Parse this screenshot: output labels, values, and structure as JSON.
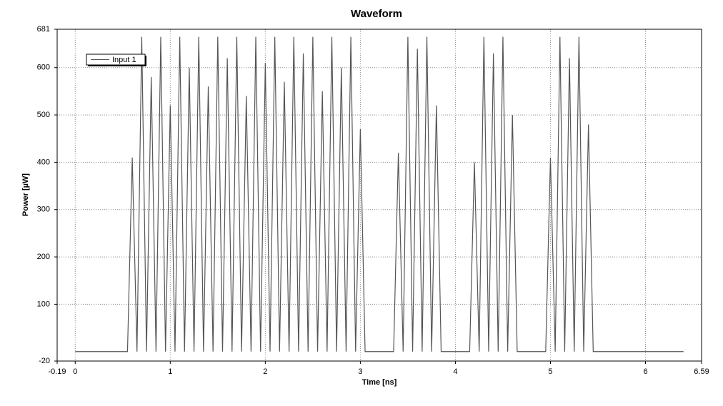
{
  "chart_data": {
    "type": "line",
    "title": "Waveform",
    "x_label": "Time [ns]",
    "y_label": "Power [µW]",
    "x": [
      0,
      0.55,
      0.6,
      0.65,
      0.7,
      0.75,
      0.8,
      0.85,
      0.9,
      0.95,
      1.0,
      1.05,
      1.1,
      1.15,
      1.2,
      1.25,
      1.3,
      1.35,
      1.4,
      1.45,
      1.5,
      1.55,
      1.6,
      1.65,
      1.7,
      1.75,
      1.8,
      1.85,
      1.9,
      1.95,
      2.0,
      2.05,
      2.1,
      2.15,
      2.2,
      2.25,
      2.3,
      2.35,
      2.4,
      2.45,
      2.5,
      2.55,
      2.6,
      2.65,
      2.7,
      2.75,
      2.8,
      2.85,
      2.9,
      2.95,
      3.0,
      3.05,
      3.35,
      3.4,
      3.45,
      3.5,
      3.55,
      3.6,
      3.65,
      3.7,
      3.75,
      3.8,
      3.85,
      4.15,
      4.2,
      4.25,
      4.3,
      4.35,
      4.4,
      4.45,
      4.5,
      4.55,
      4.6,
      4.65,
      4.95,
      5.0,
      5.05,
      5.1,
      5.15,
      5.2,
      5.25,
      5.3,
      5.35,
      5.4,
      5.45,
      6.4
    ],
    "series": [
      {
        "name": "Input 1",
        "color": "#555555",
        "values": [
          0,
          0,
          410,
          0,
          665,
          0,
          580,
          0,
          665,
          0,
          520,
          0,
          665,
          0,
          600,
          0,
          665,
          0,
          560,
          0,
          665,
          0,
          620,
          0,
          665,
          0,
          540,
          0,
          665,
          0,
          610,
          0,
          665,
          0,
          570,
          0,
          665,
          0,
          630,
          0,
          665,
          0,
          550,
          0,
          665,
          0,
          600,
          0,
          665,
          0,
          470,
          0,
          0,
          420,
          0,
          665,
          0,
          640,
          0,
          665,
          0,
          520,
          0,
          0,
          400,
          0,
          665,
          0,
          630,
          0,
          665,
          0,
          500,
          0,
          0,
          410,
          0,
          665,
          0,
          620,
          0,
          665,
          0,
          480,
          0,
          0
        ]
      }
    ],
    "xlim": [
      -0.19,
      6.59
    ],
    "xticks": [
      -0.19,
      0,
      1,
      2,
      3,
      4,
      5,
      6,
      6.59
    ],
    "ylim": [
      -20,
      681
    ],
    "yticks": [
      -20,
      100,
      200,
      300,
      400,
      500,
      600,
      681
    ],
    "grid": true,
    "legend": "top-left"
  }
}
